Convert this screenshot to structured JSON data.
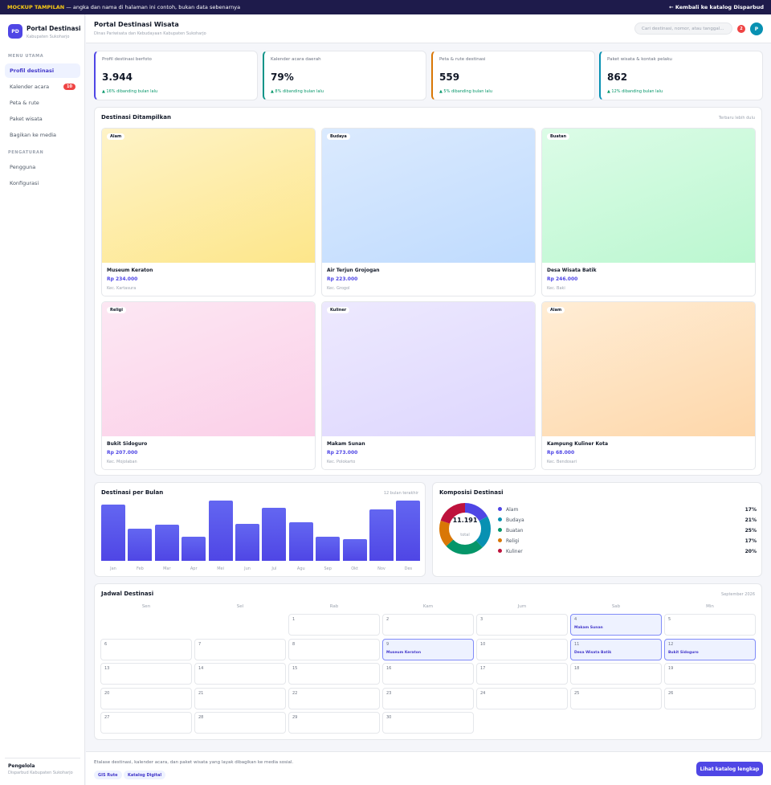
{
  "topbar": {
    "tag": "MOCKUP TAMPILAN",
    "notice": " — angka dan nama di halaman ini contoh, bukan data sebenarnya",
    "back": "← Kembali ke katalog Disparbud"
  },
  "brand": {
    "initials": "PD",
    "title": "Portal Destinasi",
    "subtitle": "Kabupaten Sukoharjo"
  },
  "sidebar": {
    "menu_heading": "MENU UTAMA",
    "menu": [
      {
        "label": "Profil destinasi"
      },
      {
        "label": "Kalender acara",
        "badge": "10"
      },
      {
        "label": "Peta & rute"
      },
      {
        "label": "Paket wisata"
      },
      {
        "label": "Bagikan ke media"
      }
    ],
    "settings_heading": "PENGATURAN",
    "settings": [
      {
        "label": "Pengguna"
      },
      {
        "label": "Konfigurasi"
      }
    ],
    "footer_name": "Pengelola",
    "footer_sub": "Disparbud Kabupaten Sukoharjo"
  },
  "header": {
    "title": "Portal Destinasi Wisata",
    "subtitle": "Dinas Pariwisata dan Kebudayaan Kabupaten Sukoharjo",
    "search_placeholder": "Cari destinasi, nomor, atau tanggal...",
    "notif_count": "2",
    "avatar": "P"
  },
  "stats": [
    {
      "label": "Profil destinasi berfoto",
      "value": "3.944",
      "change": "▲ 16% dibanding bulan lalu",
      "color": "#4f46e5"
    },
    {
      "label": "Kalender acara daerah",
      "value": "79%",
      "change": "▲ 8% dibanding bulan lalu",
      "color": "#0d9488"
    },
    {
      "label": "Peta & rute destinasi",
      "value": "559",
      "change": "▲ 5% dibanding bulan lalu",
      "color": "#d97706"
    },
    {
      "label": "Paket wisata & kontak pelaku",
      "value": "862",
      "change": "▲ 12% dibanding bulan lalu",
      "color": "#0891b2"
    }
  ],
  "destinations": {
    "title": "Destinasi Ditampilkan",
    "note": "Terbaru lebih dulu",
    "cards": [
      {
        "category": "Alam",
        "name": "Museum Keraton",
        "price": "Rp 234.000",
        "location": "Kec. Kartasura",
        "c1": "#fef3c7",
        "c2": "#fde68a"
      },
      {
        "category": "Budaya",
        "name": "Air Terjun Grojogan",
        "price": "Rp 223.000",
        "location": "Kec. Grogol",
        "c1": "#dbeafe",
        "c2": "#bfdbfe"
      },
      {
        "category": "Buatan",
        "name": "Desa Wisata Batik",
        "price": "Rp 246.000",
        "location": "Kec. Baki",
        "c1": "#dcfce7",
        "c2": "#bbf7d0"
      },
      {
        "category": "Religi",
        "name": "Bukit Sidoguro",
        "price": "Rp 207.000",
        "location": "Kec. Mojolaban",
        "c1": "#fce7f3",
        "c2": "#fbcfe8"
      },
      {
        "category": "Kuliner",
        "name": "Makam Sunan",
        "price": "Rp 273.000",
        "location": "Kec. Polokarto",
        "c1": "#ede9fe",
        "c2": "#ddd6fe"
      },
      {
        "category": "Alam",
        "name": "Kampung Kuliner Kota",
        "price": "Rp 68.000",
        "location": "Kec. Bendosari",
        "c1": "#ffedd5",
        "c2": "#fed7aa"
      }
    ]
  },
  "monthly": {
    "title": "Destinasi per Bulan",
    "note": "12 bulan terakhir"
  },
  "composition": {
    "title": "Komposisi Destinasi",
    "total": "11.191",
    "total_label": "total"
  },
  "chart_data": [
    {
      "type": "bar",
      "title": "Destinasi per Bulan",
      "categories": [
        "Jan",
        "Feb",
        "Mar",
        "Apr",
        "Mei",
        "Jun",
        "Jul",
        "Agu",
        "Sep",
        "Okt",
        "Nov",
        "Des"
      ],
      "values": [
        93,
        53,
        60,
        40,
        100,
        62,
        88,
        64,
        40,
        36,
        86,
        100
      ],
      "ylim": [
        0,
        100
      ]
    },
    {
      "type": "pie",
      "title": "Komposisi Destinasi",
      "categories": [
        "Alam",
        "Budaya",
        "Buatan",
        "Religi",
        "Kuliner"
      ],
      "values": [
        17,
        21,
        25,
        17,
        20
      ],
      "labels": [
        "17%",
        "21%",
        "25%",
        "17%",
        "20%"
      ],
      "colors": [
        "#4f46e5",
        "#0891b2",
        "#059669",
        "#d97706",
        "#be123c"
      ]
    }
  ],
  "calendar": {
    "title": "Jadwal Destinasi",
    "month": "September 2026",
    "days": [
      "Sen",
      "Sel",
      "Rab",
      "Kam",
      "Jum",
      "Sab",
      "Min"
    ],
    "first_col": 2,
    "num_days": 30,
    "events": {
      "4": "Makam Sunan",
      "9": "Museum Keraton",
      "11": "Desa Wisata Batik",
      "12": "Bukit Sidoguro"
    }
  },
  "footer": {
    "text": "Etalase destinasi, kalender acara, dan paket wisata yang layak dibagikan ke media sosial.",
    "tags": [
      "GIS Rute",
      "Katalog Digital"
    ],
    "button": "Lihat katalog lengkap"
  }
}
